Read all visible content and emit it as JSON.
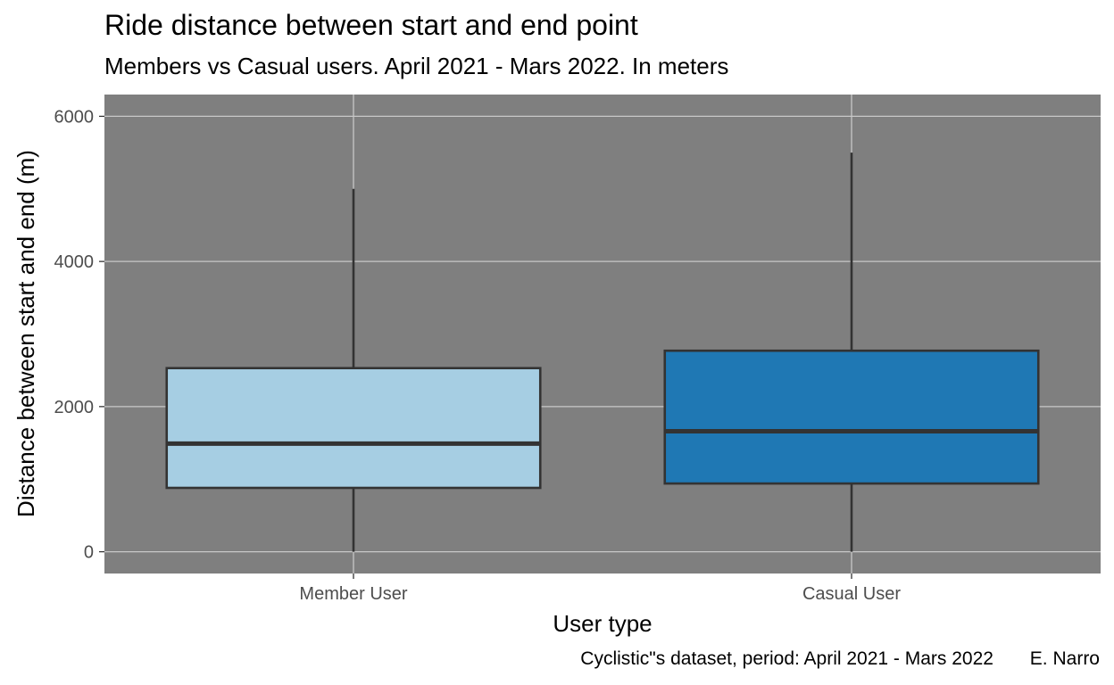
{
  "chart_data": {
    "type": "boxplot",
    "title": "Ride distance between start and end point",
    "subtitle": "Members vs Casual users. April 2021 - Mars 2022. In meters",
    "xlabel": "User type",
    "ylabel": "Distance between start and end (m)",
    "caption": "Cyclistic\"s dataset, period: April 2021 - Mars 2022       E. Narro",
    "ylim": [
      -300,
      6300
    ],
    "yticks": [
      0,
      2000,
      4000,
      6000
    ],
    "grid": true,
    "panel_color": "#7f7f7f",
    "categories": [
      "Member User",
      "Casual User"
    ],
    "boxes": [
      {
        "category": "Member User",
        "min": 0,
        "q1": 880,
        "median": 1490,
        "q3": 2530,
        "max": 5000,
        "color": "#a6cee3"
      },
      {
        "category": "Casual User",
        "min": 0,
        "q1": 940,
        "median": 1660,
        "q3": 2770,
        "max": 5500,
        "color": "#1f78b4"
      }
    ]
  }
}
